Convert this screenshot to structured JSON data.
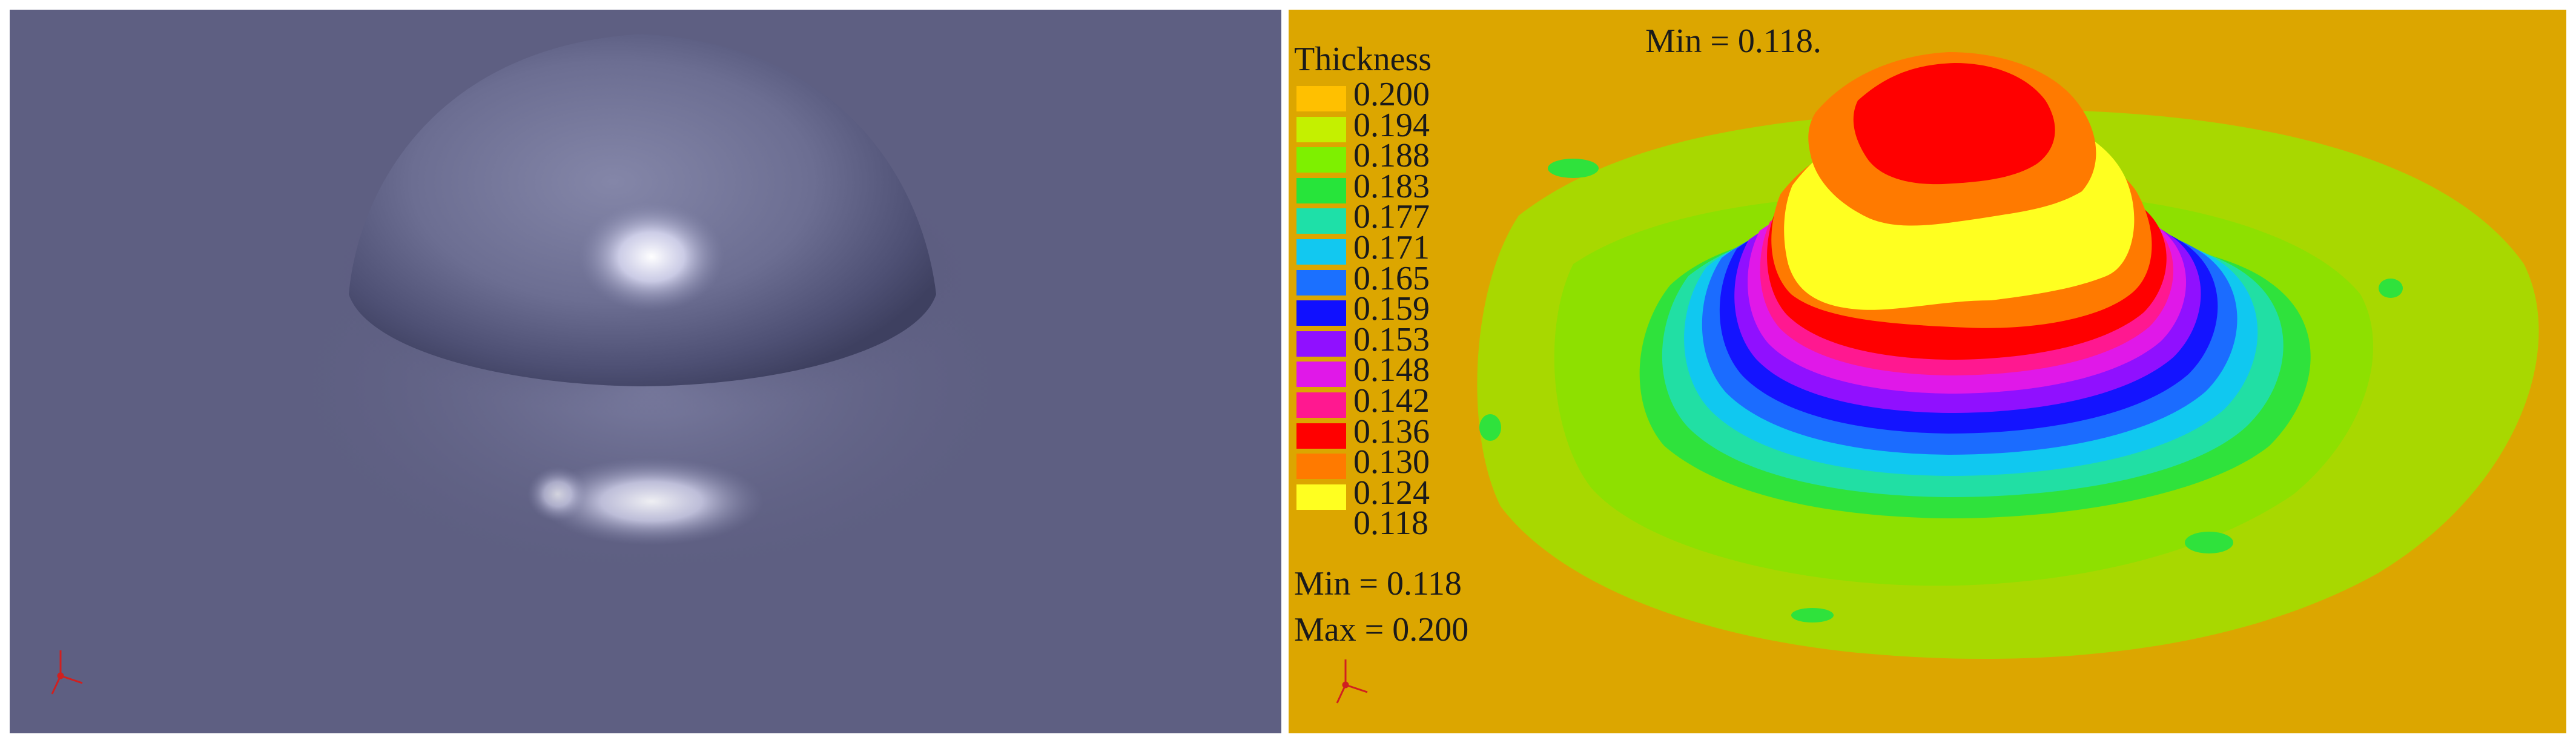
{
  "colors": {
    "left_background": "#5e5f82",
    "right_background": "#dca600",
    "outer_region": "#a8d800"
  },
  "legend": {
    "title": "Thickness",
    "ticks": [
      "0.200",
      "0.194",
      "0.188",
      "0.183",
      "0.177",
      "0.171",
      "0.165",
      "0.159",
      "0.153",
      "0.148",
      "0.142",
      "0.136",
      "0.130",
      "0.124",
      "0.118"
    ],
    "band_colors": [
      "#ffc000",
      "#c4f000",
      "#7ef000",
      "#27e43a",
      "#1ee0a8",
      "#12c8f0",
      "#1b70ff",
      "#1010ff",
      "#9010ff",
      "#e018e8",
      "#ff1890",
      "#ff0000",
      "#ff7a00",
      "#ffff20"
    ]
  },
  "stats": {
    "min_label": "Min =",
    "min_value": "0.118",
    "max_label": "Max =",
    "max_value": "0.200"
  },
  "min_marker": "Min = 0.118."
}
